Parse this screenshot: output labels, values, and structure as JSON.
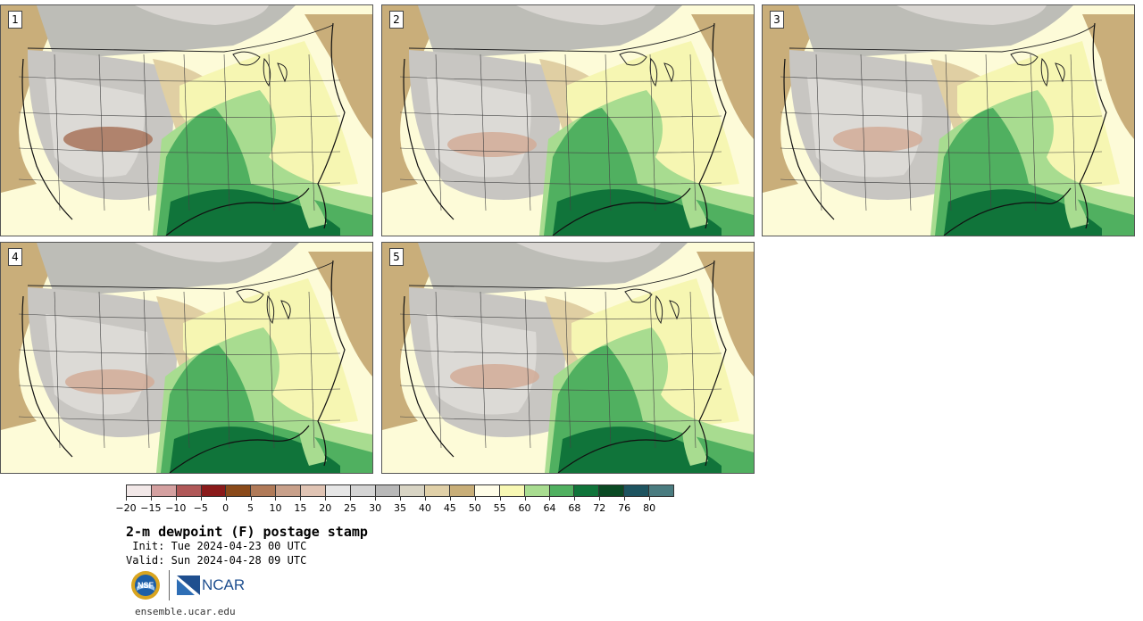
{
  "panels": [
    {
      "label": "1",
      "variant": 0
    },
    {
      "label": "2",
      "variant": 1
    },
    {
      "label": "3",
      "variant": 2
    },
    {
      "label": "4",
      "variant": 3
    },
    {
      "label": "5",
      "variant": 4
    }
  ],
  "colorbar": {
    "colors": [
      "#f2e8e8",
      "#d4a0a0",
      "#b05858",
      "#8a1a1a",
      "#8a4a1a",
      "#b07a58",
      "#c8a08a",
      "#e0c4b4",
      "#e6e6e6",
      "#d4d4d4",
      "#b8b8b8",
      "#d8d4c4",
      "#e0d0a8",
      "#c8ae78",
      "#fffde8",
      "#f8f8b4",
      "#a8dc90",
      "#50b060",
      "#10743a",
      "#0a4a24",
      "#1e5460",
      "#4a7c80"
    ],
    "ticks": [
      "−20",
      "−15",
      "−10",
      "−5",
      "0",
      "5",
      "10",
      "15",
      "20",
      "25",
      "30",
      "35",
      "40",
      "45",
      "50",
      "55",
      "60",
      "64",
      "68",
      "72",
      "76",
      "80"
    ]
  },
  "title": "2-m dewpoint (F) postage stamp",
  "init": " Init: Tue 2024-04-23 00 UTC",
  "valid": "Valid: Sun 2024-04-28 09 UTC",
  "logos": {
    "nsf": "NSF",
    "ncar": "NCAR"
  },
  "site": "ensemble.ucar.edu"
}
